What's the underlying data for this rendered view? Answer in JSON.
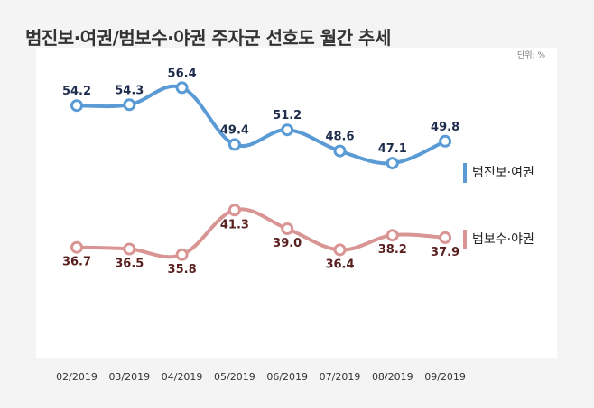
{
  "title": "범진보·여권/범보수·야권 주자군 선호도 월간 추세",
  "unit_label": "단위: %",
  "chart_data": {
    "type": "line",
    "title": "범진보·여권/범보수·야권 주자군 선호도 월간 추세",
    "categories": [
      "02/2019",
      "03/2019",
      "04/2019",
      "05/2019",
      "06/2019",
      "07/2019",
      "08/2019",
      "09/2019"
    ],
    "series": [
      {
        "name": "범진보·여권",
        "values": [
          54.2,
          54.3,
          56.4,
          49.4,
          51.2,
          48.6,
          47.1,
          49.8
        ],
        "color": "#5b9bd5",
        "label_color": "#1f2d4d"
      },
      {
        "name": "범보수·야권",
        "values": [
          36.7,
          36.5,
          35.8,
          41.3,
          39.0,
          36.4,
          38.2,
          37.9
        ],
        "color": "#d99594",
        "label_color": "#5a1f1f"
      }
    ],
    "ylim": [
      30,
      60
    ],
    "grid": false,
    "legend": "right"
  }
}
